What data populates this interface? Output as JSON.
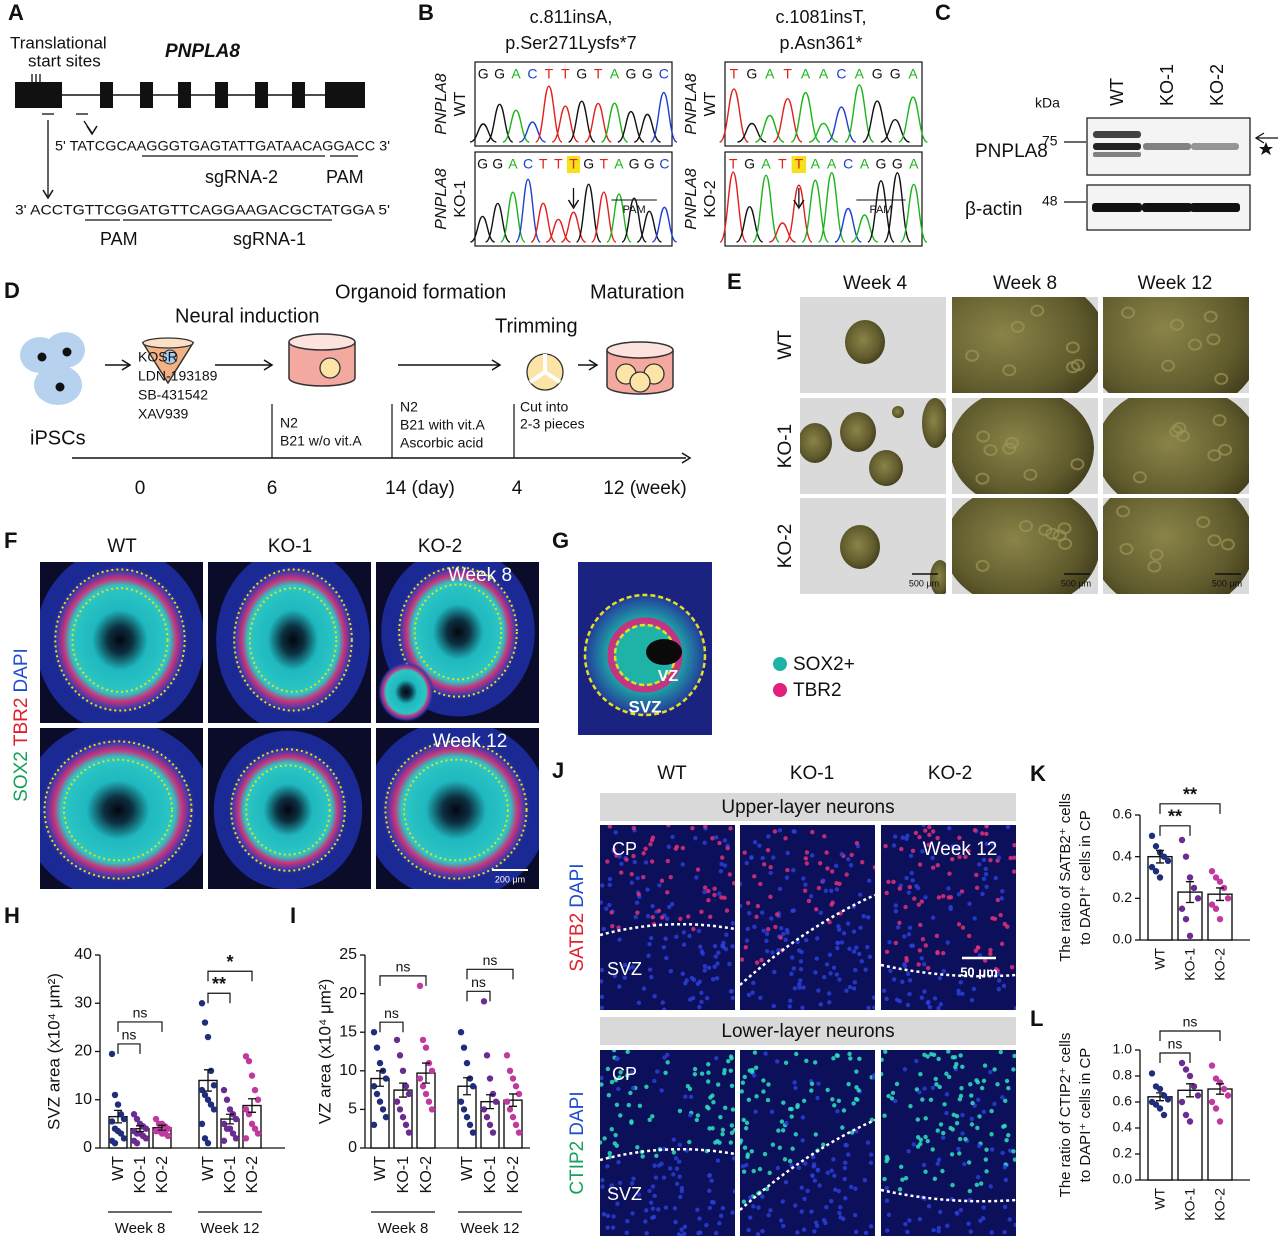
{
  "panels": {
    "A": {
      "label": "A",
      "gene": "PNPLA8",
      "start_sites": [
        "Translational",
        "start sites"
      ],
      "seq_top": "5' TATCGCAAGGGTGAGTATTGATAACAGGACC 3'",
      "sgrna_top": "sgRNA-2",
      "pam_top": "PAM",
      "seq_bottom": "3' ACCTGTTCGGATGTTCAGGAAGACGCTATGGA 5'",
      "pam_bottom": "PAM",
      "sgrna_bottom": "sgRNA-1"
    },
    "B": {
      "label": "B",
      "mutations": [
        {
          "title": [
            "c.811insA,",
            "p.Ser271Lysfs*7"
          ],
          "gene": "PNPLA8",
          "wt": "WT",
          "ko": "KO-1",
          "wt_seq": "GGACTTGTAGGC",
          "ko_seq": "GGACTTTGTAGGC",
          "pam": "PAM"
        },
        {
          "title": [
            "c.1081insT,",
            "p.Asn361*"
          ],
          "gene": "PNPLA8",
          "wt": "WT",
          "ko": "KO-2",
          "wt_seq": "TGATAACAGGA",
          "ko_seq": "TGATTAACAGGA",
          "pam": "PAM"
        }
      ]
    },
    "C": {
      "label": "C",
      "lanes": [
        "WT",
        "KO-1",
        "KO-2"
      ],
      "unit": "kDa",
      "blots": [
        {
          "protein": "PNPLA8",
          "marker": "75"
        },
        {
          "protein": "β-actin",
          "marker": "48"
        }
      ]
    },
    "D": {
      "label": "D",
      "steps": {
        "induction": "Neural induction",
        "formation": "Organoid formation",
        "trimming": "Trimming",
        "maturation": "Maturation",
        "cells": "iPSCs"
      },
      "media": [
        [
          "KOSR",
          "LDN-193189",
          "SB-431542",
          "XAV939"
        ],
        [
          "N2",
          "B21 w/o vit.A"
        ],
        [
          "N2",
          "B21 with vit.A",
          "Ascorbic acid"
        ],
        [
          "Cut into",
          "2-3 pieces"
        ]
      ],
      "timeline": [
        "0",
        "6",
        "14 (day)",
        "4",
        "12 (week)"
      ]
    },
    "E": {
      "label": "E",
      "columns": [
        "Week 4",
        "Week 8",
        "Week 12"
      ],
      "rows": [
        "WT",
        "KO-1",
        "KO-2"
      ],
      "scale": "500 μm"
    },
    "F": {
      "label": "F",
      "columns": [
        "WT",
        "KO-1",
        "KO-2"
      ],
      "weeks": [
        "Week 8",
        "Week 12"
      ],
      "stains": [
        "SOX2",
        "TBR2",
        "DAPI"
      ],
      "scale": "200 μm"
    },
    "G": {
      "label": "G",
      "zones": [
        "VZ",
        "SVZ"
      ],
      "legend": [
        "SOX2+",
        "TBR2"
      ]
    },
    "J": {
      "label": "J",
      "columns": [
        "WT",
        "KO-1",
        "KO-2"
      ],
      "sections": [
        {
          "title": "Upper-layer neurons",
          "stains": [
            "SATB2",
            "DAPI"
          ]
        },
        {
          "title": "Lower-layer neurons",
          "stains": [
            "CTIP2",
            "DAPI"
          ]
        }
      ],
      "cp": "CP",
      "svz": "SVZ",
      "week": "Week 12",
      "scale": "50 μm"
    }
  },
  "chart_data": [
    {
      "type": "bar",
      "label": "H",
      "ylabel": "SVZ area (x10⁴ μm²)",
      "categories": [
        "WT",
        "KO-1",
        "KO-2",
        "WT",
        "KO-1",
        "KO-2"
      ],
      "groups": [
        "Week 8",
        "Week 12"
      ],
      "colors": [
        "#1f2d7a",
        "#6b2c91",
        "#c0399f",
        "#1f2d7a",
        "#6b2c91",
        "#c0399f"
      ],
      "values": [
        6.5,
        4,
        4.2,
        14,
        6,
        8.8
      ],
      "errors": [
        1.3,
        0.6,
        0.5,
        2.2,
        1,
        1.4
      ],
      "points": [
        [
          19.5,
          11,
          9,
          7,
          6,
          5.5,
          4,
          3.5,
          3,
          2,
          1.5,
          1
        ],
        [
          7,
          6,
          5,
          4.5,
          4,
          3.5,
          3,
          3,
          2.5,
          2,
          1.5,
          1
        ],
        [
          6,
          5,
          5,
          4.5,
          4,
          3.5,
          3.5,
          3,
          3,
          2.5
        ],
        [
          30,
          26,
          23,
          16,
          13,
          12,
          11,
          10,
          9,
          8,
          5,
          2,
          1
        ],
        [
          12,
          10,
          8,
          7,
          6,
          5,
          4,
          4,
          3,
          2,
          1.5
        ],
        [
          19,
          18,
          15,
          12,
          10,
          8,
          7,
          5,
          4,
          3,
          2
        ]
      ],
      "ylim": [
        0,
        40
      ],
      "yticks": [
        0,
        10,
        20,
        30,
        40
      ],
      "annotations": [
        {
          "text": "ns",
          "from": 0,
          "to": 1
        },
        {
          "text": "ns",
          "from": 0,
          "to": 2
        },
        {
          "text": "**",
          "from": 3,
          "to": 4
        },
        {
          "text": "*",
          "from": 3,
          "to": 5
        }
      ]
    },
    {
      "type": "bar",
      "label": "I",
      "ylabel": "VZ area (x10⁴ μm²)",
      "categories": [
        "WT",
        "KO-1",
        "KO-2",
        "WT",
        "KO-1",
        "KO-2"
      ],
      "groups": [
        "Week 8",
        "Week 12"
      ],
      "colors": [
        "#1f2d7a",
        "#6b2c91",
        "#c0399f",
        "#1f2d7a",
        "#6b2c91",
        "#c0399f"
      ],
      "values": [
        9,
        7.5,
        9.7,
        8,
        6,
        6.2
      ],
      "errors": [
        1,
        0.9,
        1.3,
        1.1,
        0.9,
        0.8
      ],
      "points": [
        [
          15,
          13,
          11,
          10,
          9,
          8,
          7,
          6,
          5,
          4,
          3
        ],
        [
          14,
          12,
          10,
          8,
          7,
          6,
          5,
          4,
          3,
          2
        ],
        [
          21,
          14,
          13,
          11,
          10,
          9,
          8,
          7,
          6,
          5
        ],
        [
          15,
          13,
          11,
          9,
          8,
          6,
          5,
          4,
          3,
          2
        ],
        [
          19,
          12,
          9,
          7,
          6,
          5,
          4,
          3,
          2
        ],
        [
          12,
          10,
          9,
          8,
          7,
          6,
          5,
          4,
          3,
          2
        ]
      ],
      "ylim": [
        0,
        25
      ],
      "yticks": [
        0,
        5,
        10,
        15,
        20,
        25
      ],
      "annotations": [
        {
          "text": "ns",
          "from": 0,
          "to": 1
        },
        {
          "text": "ns",
          "from": 0,
          "to": 2
        },
        {
          "text": "ns",
          "from": 3,
          "to": 4
        },
        {
          "text": "ns",
          "from": 3,
          "to": 5
        }
      ]
    },
    {
      "type": "bar",
      "label": "K",
      "ylabel": [
        "The ratio of SATB2⁺ cells",
        "to DAPI⁺ cells in CP"
      ],
      "categories": [
        "WT",
        "KO-1",
        "KO-2"
      ],
      "colors": [
        "#1f2d7a",
        "#6b2c91",
        "#c0399f"
      ],
      "values": [
        0.4,
        0.23,
        0.22
      ],
      "errors": [
        0.03,
        0.05,
        0.03
      ],
      "points": [
        [
          0.5,
          0.45,
          0.42,
          0.4,
          0.38,
          0.35,
          0.33,
          0.3
        ],
        [
          0.48,
          0.4,
          0.3,
          0.25,
          0.2,
          0.15,
          0.1,
          0.02
        ],
        [
          0.33,
          0.3,
          0.28,
          0.25,
          0.2,
          0.17,
          0.15,
          0.1
        ]
      ],
      "ylim": [
        0,
        0.6
      ],
      "yticks": [
        {
          "value": 0,
          "label": "0.0"
        },
        0.2,
        0.4,
        0.6
      ],
      "annotations": [
        {
          "text": "**",
          "from": 0,
          "to": 1
        },
        {
          "text": "**",
          "from": 0,
          "to": 2
        }
      ]
    },
    {
      "type": "bar",
      "label": "L",
      "ylabel": [
        "The ratio of CTIP2⁺ cells",
        "to DAPI⁺ cells in CP"
      ],
      "categories": [
        "WT",
        "KO-1",
        "KO-2"
      ],
      "colors": [
        "#1f2d7a",
        "#6b2c91",
        "#c0399f"
      ],
      "values": [
        0.64,
        0.69,
        0.7
      ],
      "errors": [
        0.03,
        0.05,
        0.04
      ],
      "points": [
        [
          0.82,
          0.72,
          0.7,
          0.65,
          0.62,
          0.6,
          0.58,
          0.55,
          0.5
        ],
        [
          0.9,
          0.85,
          0.8,
          0.72,
          0.65,
          0.6,
          0.5,
          0.45
        ],
        [
          0.88,
          0.78,
          0.75,
          0.7,
          0.65,
          0.6,
          0.55,
          0.45
        ]
      ],
      "ylim": [
        0,
        1
      ],
      "yticks": [
        {
          "value": 0,
          "label": "0.0"
        },
        0.2,
        0.4,
        0.6,
        0.8,
        {
          "value": 1,
          "label": "1.0"
        }
      ],
      "annotations": [
        {
          "text": "ns",
          "from": 0,
          "to": 1
        },
        {
          "text": "ns",
          "from": 0,
          "to": 2
        }
      ]
    }
  ]
}
